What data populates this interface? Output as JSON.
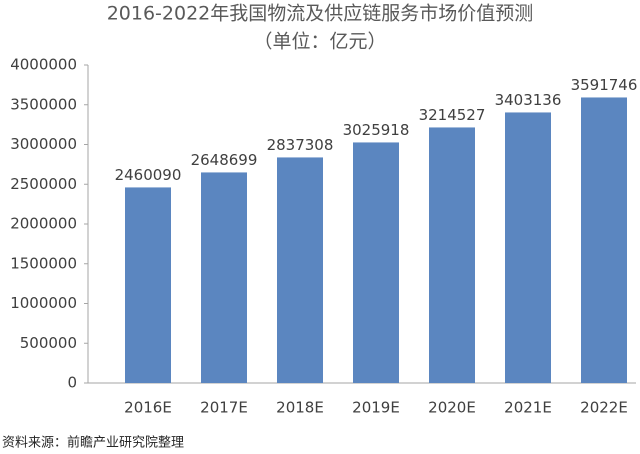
{
  "chart_data": {
    "type": "bar",
    "title": "2016-2022年我国物流及供应链服务市场价值预测",
    "subtitle": "（单位：亿元）",
    "categories": [
      "2016E",
      "2017E",
      "2018E",
      "2019E",
      "2020E",
      "2021E",
      "2022E"
    ],
    "values": [
      2460090,
      2648699,
      2837308,
      3025918,
      3214527,
      3403136,
      3591746
    ],
    "color": "#5b86c0",
    "ylim": [
      0,
      4000000
    ],
    "yticks": [
      0,
      500000,
      1000000,
      1500000,
      2000000,
      2500000,
      3000000,
      3500000,
      4000000
    ],
    "grid": false,
    "source": "资料来源：前瞻产业研究院整理"
  }
}
